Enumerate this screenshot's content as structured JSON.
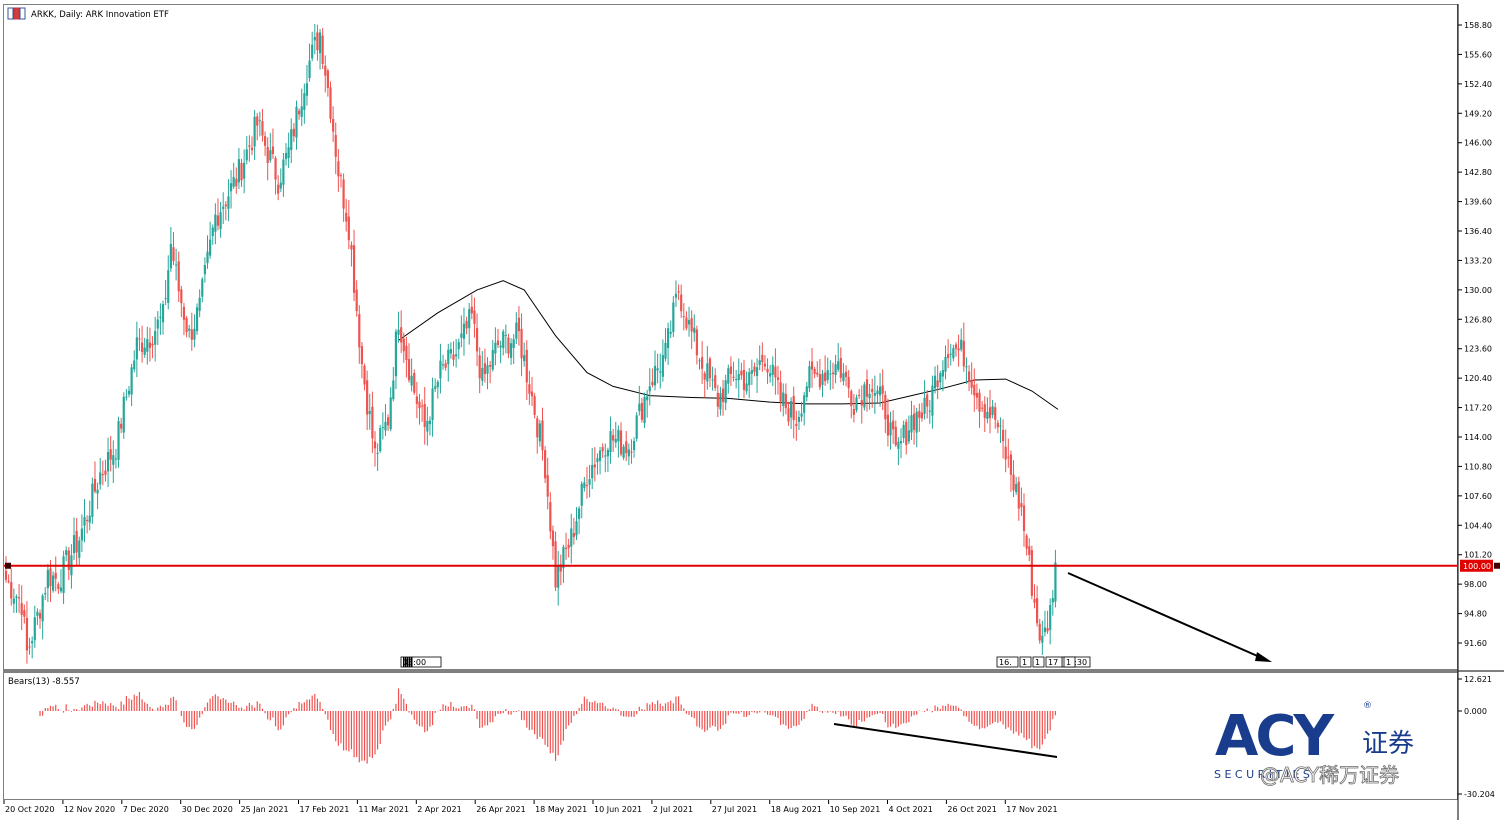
{
  "window": {
    "title": "ARKK, Daily:  ARK Innovation ETF"
  },
  "colors": {
    "up": "#26a69a",
    "down": "#ef5350",
    "level": "#e00000",
    "ma": "#000000",
    "bears": "#ef5350",
    "logo": "#1a3c8c"
  },
  "chart_data": [
    {
      "type": "candlestick",
      "title": "ARKK, Daily:  ARK Innovation ETF",
      "timeframe": "Daily",
      "x_tick_labels": [
        "20 Oct 2020",
        "12 Nov 2020",
        "7 Dec 2020",
        "30 Dec 2020",
        "25 Jan 2021",
        "17 Feb 2021",
        "11 Mar 2021",
        "2 Apr 2021",
        "26 Apr 2021",
        "18 May 2021",
        "10 Jun 2021",
        "2 Jul 2021",
        "27 Jul 2021",
        "18 Aug 2021",
        "10 Sep 2021",
        "4 Oct 2021",
        "26 Oct 2021",
        "17 Nov 2021"
      ],
      "y_tick_labels": [
        "158.80",
        "155.60",
        "152.40",
        "149.20",
        "146.00",
        "142.80",
        "139.60",
        "136.40",
        "133.20",
        "130.00",
        "126.80",
        "123.60",
        "120.40",
        "117.20",
        "114.00",
        "110.80",
        "107.60",
        "104.40",
        "101.20",
        "98.00",
        "94.80",
        "91.60"
      ],
      "ylim": [
        89.3,
        160.2
      ],
      "close_anchors": [
        [
          0,
          98.5
        ],
        [
          6,
          96
        ],
        [
          8,
          90.5
        ],
        [
          12,
          94.5
        ],
        [
          16,
          99
        ],
        [
          20,
          98.5
        ],
        [
          28,
          103
        ],
        [
          36,
          110
        ],
        [
          42,
          113
        ],
        [
          50,
          124
        ],
        [
          55,
          125
        ],
        [
          60,
          127
        ],
        [
          63,
          135
        ],
        [
          66,
          130
        ],
        [
          70,
          125
        ],
        [
          74,
          128
        ],
        [
          80,
          138
        ],
        [
          88,
          142
        ],
        [
          96,
          148
        ],
        [
          104,
          142
        ],
        [
          108,
          145
        ],
        [
          115,
          154
        ],
        [
          120,
          158
        ],
        [
          124,
          150
        ],
        [
          127,
          143
        ],
        [
          131,
          137
        ],
        [
          136,
          122
        ],
        [
          141,
          112
        ],
        [
          146,
          116
        ],
        [
          150,
          127
        ],
        [
          156,
          119
        ],
        [
          160,
          115
        ],
        [
          166,
          121
        ],
        [
          172,
          123
        ],
        [
          178,
          127
        ],
        [
          182,
          120
        ],
        [
          188,
          124
        ],
        [
          196,
          125
        ],
        [
          202,
          117
        ],
        [
          206,
          111
        ],
        [
          210,
          98.5
        ],
        [
          216,
          103
        ],
        [
          222,
          110
        ],
        [
          230,
          114
        ],
        [
          238,
          113
        ],
        [
          246,
          120
        ],
        [
          252,
          123
        ],
        [
          257,
          130
        ],
        [
          261,
          126
        ],
        [
          266,
          122
        ],
        [
          272,
          118
        ],
        [
          278,
          121
        ],
        [
          284,
          120
        ],
        [
          290,
          123
        ],
        [
          296,
          118
        ],
        [
          302,
          116
        ],
        [
          306,
          120
        ],
        [
          312,
          121
        ],
        [
          318,
          122
        ],
        [
          324,
          118
        ],
        [
          330,
          120
        ],
        [
          336,
          117
        ],
        [
          340,
          112
        ],
        [
          346,
          116
        ],
        [
          352,
          117
        ],
        [
          356,
          121
        ],
        [
          360,
          124
        ],
        [
          366,
          123
        ],
        [
          372,
          118
        ],
        [
          378,
          116
        ],
        [
          382,
          112
        ],
        [
          388,
          106
        ],
        [
          391,
          100
        ],
        [
          394,
          94
        ],
        [
          396,
          91.5
        ],
        [
          399,
          95
        ],
        [
          401,
          100.5
        ]
      ],
      "series": [
        {
          "name": "",
          "kind": "moving-average",
          "window": 150,
          "points": [
            [
              150,
              124.5
            ],
            [
              165,
              127.5
            ],
            [
              180,
              130
            ],
            [
              190,
              131
            ],
            [
              198,
              130
            ],
            [
              210,
              125
            ],
            [
              222,
              121
            ],
            [
              232,
              119.5
            ],
            [
              246,
              118.5
            ],
            [
              262,
              118.3
            ],
            [
              276,
              118.2
            ],
            [
              292,
              117.8
            ],
            [
              306,
              117.6
            ],
            [
              320,
              117.6
            ],
            [
              334,
              117.7
            ],
            [
              346,
              118.5
            ],
            [
              358,
              119.3
            ],
            [
              370,
              120.2
            ],
            [
              382,
              120.3
            ],
            [
              392,
              119
            ],
            [
              402,
              117
            ]
          ]
        }
      ],
      "horizontal_levels": [
        {
          "value": 100.0,
          "label": "100.00"
        }
      ],
      "annotations": [
        "downward arrow from latest bar toward lower right"
      ],
      "trendline_markers": [
        {
          "left": "03:00"
        },
        {
          "right": "18:30",
          "texts": [
            "16.",
            "1",
            "1",
            "17",
            "1"
          ]
        }
      ]
    },
    {
      "type": "bar",
      "title": "Bears(13) -8.557",
      "indicator": "Bears Power",
      "period": 13,
      "last_value": -8.557,
      "y_tick_labels": [
        "12.621",
        "0.000",
        "-30.204"
      ],
      "ylim": [
        -30.204,
        12.621
      ],
      "annotations": [
        "declining trendline under recent bear troughs"
      ]
    }
  ],
  "watermark": {
    "brand": "ACY",
    "cn": "证券",
    "registered": "®",
    "sub": "S E C U R I T I E S",
    "handle": "@ACY稀万证券"
  }
}
